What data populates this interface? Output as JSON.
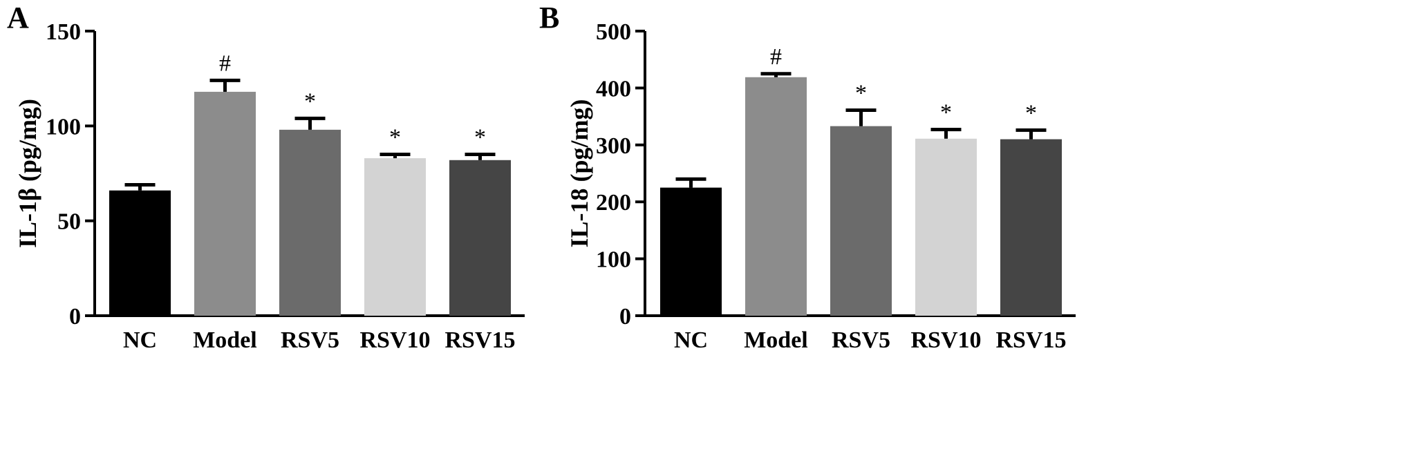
{
  "colors": {
    "NC": "#000000",
    "Model": "#8c8c8c",
    "RSV5": "#6b6b6b",
    "RSV10": "#d3d3d3",
    "RSV15": "#454545"
  },
  "chart_data": [
    {
      "type": "bar",
      "panel": "A",
      "ylabel": "IL-1β (pg/mg)",
      "xlabel": "",
      "categories": [
        "NC",
        "Model",
        "RSV5",
        "RSV10",
        "RSV15"
      ],
      "values": [
        66,
        118,
        98,
        83,
        82
      ],
      "errors": [
        3,
        6,
        6,
        2,
        3
      ],
      "annotations": [
        "",
        "#",
        "*",
        "*",
        "*"
      ],
      "ylim": [
        0,
        150
      ],
      "yticks": [
        0,
        50,
        100,
        150
      ],
      "grid": false,
      "legend": "none"
    },
    {
      "type": "bar",
      "panel": "B",
      "ylabel": "IL-18 (pg/mg)",
      "xlabel": "",
      "categories": [
        "NC",
        "Model",
        "RSV5",
        "RSV10",
        "RSV15"
      ],
      "values": [
        225,
        419,
        333,
        311,
        310
      ],
      "errors": [
        15,
        6,
        28,
        16,
        16
      ],
      "annotations": [
        "",
        "#",
        "*",
        "*",
        "*"
      ],
      "ylim": [
        0,
        500
      ],
      "yticks": [
        0,
        100,
        200,
        300,
        400,
        500
      ],
      "grid": false,
      "legend": "none"
    }
  ]
}
